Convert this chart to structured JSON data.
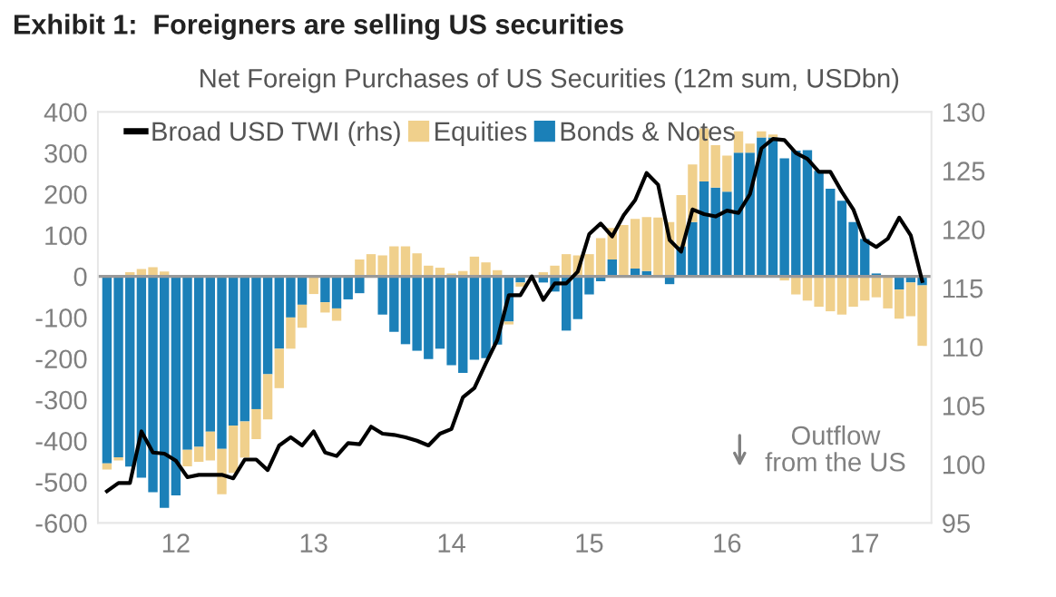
{
  "chart_data": {
    "type": "bar",
    "stacked": true,
    "title": "Exhibit 1:  Foreigners are selling US securities",
    "subtitle": "Net Foreign Purchases of US Securities (12m sum, USDbn)",
    "categories": [
      null,
      null,
      null,
      null,
      null,
      null,
      "12",
      null,
      null,
      null,
      null,
      null,
      null,
      null,
      null,
      null,
      null,
      null,
      "13",
      null,
      null,
      null,
      null,
      null,
      null,
      null,
      null,
      null,
      null,
      null,
      "14",
      null,
      null,
      null,
      null,
      null,
      null,
      null,
      null,
      null,
      null,
      null,
      "15",
      null,
      null,
      null,
      null,
      null,
      null,
      null,
      null,
      null,
      null,
      null,
      "16",
      null,
      null,
      null,
      null,
      null,
      null,
      null,
      null,
      null,
      null,
      null,
      "17",
      null,
      null,
      null,
      null,
      null
    ],
    "series": [
      {
        "name": "Bonds & Notes",
        "color": "#1b80b8",
        "values": [
          -455,
          -440,
          -463,
          -490,
          -525,
          -563,
          -533,
          -422,
          -415,
          -378,
          -420,
          -363,
          -353,
          -323,
          -238,
          -176,
          -100,
          -69,
          null,
          -63,
          -78,
          -56,
          -41,
          0,
          -93,
          -135,
          -165,
          -181,
          -201,
          -176,
          -216,
          -235,
          -203,
          -199,
          -166,
          -110,
          -15,
          0,
          -15,
          -37,
          -132,
          -104,
          -44,
          -12,
          41,
          0,
          19,
          13,
          0,
          -19,
          73,
          132,
          231,
          216,
          206,
          301,
          301,
          338,
          338,
          287,
          306,
          307,
          257,
          213,
          184,
          132,
          91,
          7,
          0,
          -32,
          -15,
          -22
        ]
      },
      {
        "name": "Equities",
        "color": "#f0d08c",
        "values": [
          -15,
          -8,
          10,
          18,
          22,
          12,
          0,
          -40,
          -36,
          -70,
          -110,
          -115,
          -88,
          -73,
          -110,
          -96,
          -76,
          -56,
          -43,
          -25,
          -30,
          0,
          41,
          54,
          51,
          73,
          73,
          56,
          26,
          21,
          7,
          13,
          48,
          34,
          15,
          -7,
          -10,
          null,
          10,
          26,
          54,
          51,
          54,
          93,
          77,
          125,
          121,
          131,
          143,
          132,
          125,
          140,
          129,
          103,
          88,
          52,
          22,
          15,
          7,
          -10,
          -44,
          -59,
          -74,
          -85,
          -93,
          -74,
          -59,
          -51,
          -78,
          -71,
          -82,
          -147
        ]
      },
      {
        "name": "Broad USD TWI (rhs)",
        "type": "line",
        "axis": "y2",
        "color": "#000000",
        "values": [
          97.7,
          98.4,
          98.4,
          102.8,
          101.0,
          100.9,
          100.3,
          98.9,
          99.1,
          99.1,
          99.1,
          98.8,
          100.4,
          100.4,
          99.5,
          101.6,
          102.3,
          101.6,
          102.8,
          101.0,
          100.7,
          101.8,
          101.7,
          103.2,
          102.6,
          102.5,
          102.3,
          102.0,
          101.6,
          102.6,
          103.0,
          105.7,
          106.5,
          108.6,
          110.6,
          114.4,
          114.4,
          116.0,
          114.0,
          115.4,
          115.4,
          116.4,
          119.6,
          120.5,
          119.4,
          121.2,
          122.5,
          124.8,
          123.8,
          119.1,
          118.1,
          121.7,
          121.3,
          121.1,
          121.6,
          121.4,
          123.0,
          126.9,
          127.7,
          127.6,
          126.5,
          126.0,
          124.9,
          124.9,
          123.2,
          121.7,
          119.1,
          118.5,
          119.2,
          121.0,
          119.5,
          115.6
        ]
      }
    ],
    "ylim": [
      -600,
      400
    ],
    "yticks": [
      -600,
      -500,
      -400,
      -300,
      -200,
      -100,
      0,
      100,
      200,
      300,
      400
    ],
    "y2lim": [
      95,
      130
    ],
    "y2ticks": [
      95,
      100,
      105,
      110,
      115,
      120,
      125,
      130
    ],
    "ref_lines": [
      {
        "axis": "y",
        "value": 0,
        "color": "#999999"
      }
    ],
    "annotations": [
      "Outflow\nfrom the US"
    ],
    "legend": "top",
    "grid": false
  }
}
